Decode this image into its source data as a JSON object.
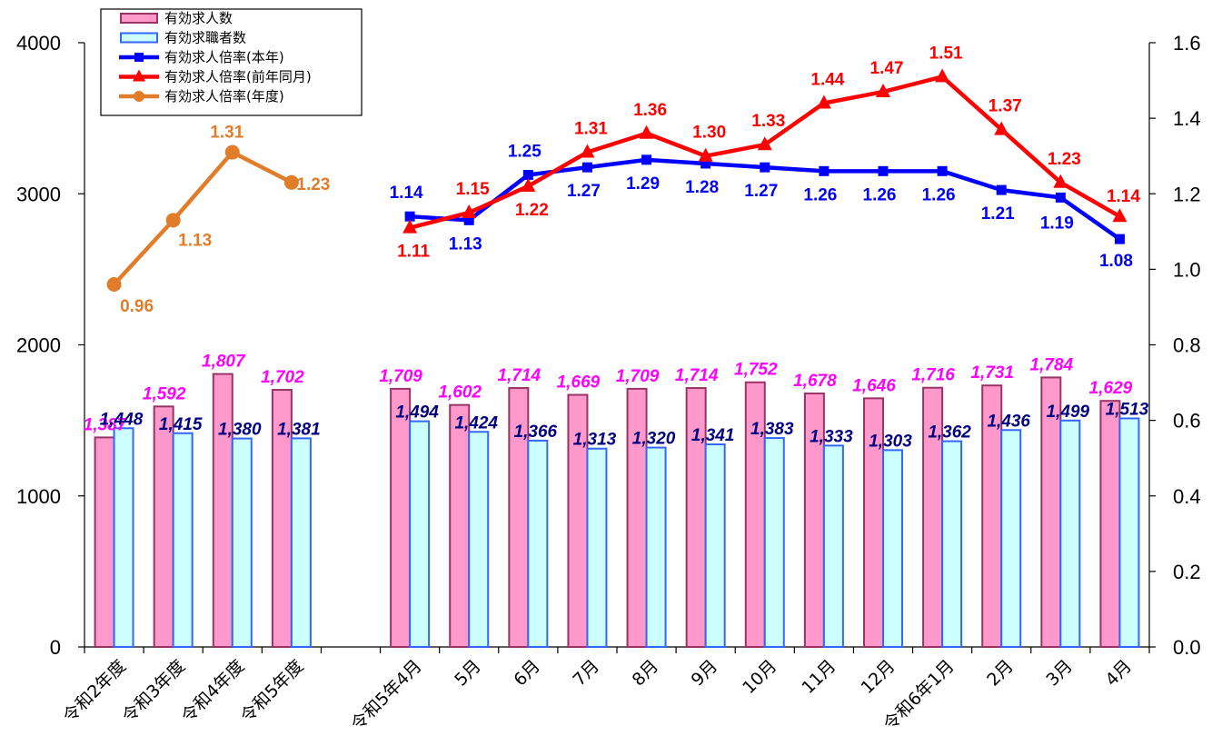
{
  "chart_data": {
    "type": "bar",
    "categories": [
      "令和2年度",
      "令和3年度",
      "令和4年度",
      "令和5年度",
      "",
      "令和5年4月",
      "5月",
      "6月",
      "7月",
      "8月",
      "9月",
      "10月",
      "11月",
      "12月",
      "令和6年1月",
      "2月",
      "3月",
      "4月"
    ],
    "y_left": {
      "min": 0,
      "max": 4000,
      "ticks": [
        "0",
        "1000",
        "2000",
        "3000",
        "4000"
      ]
    },
    "y_right": {
      "min": 0,
      "max": 1.6,
      "ticks": [
        "0.0",
        "0.2",
        "0.4",
        "0.6",
        "0.8",
        "1.0",
        "1.2",
        "1.4",
        "1.6"
      ]
    },
    "grid": false,
    "legend_position": "top-left",
    "series": [
      {
        "name": "有効求人数",
        "kind": "bar",
        "axis": "left",
        "fill": "#ff99cc",
        "stroke": "#993366",
        "label_color": "#ff00ff",
        "values": [
          1387,
          1592,
          1807,
          1702,
          null,
          1709,
          1602,
          1714,
          1669,
          1709,
          1714,
          1752,
          1678,
          1646,
          1716,
          1731,
          1784,
          1629
        ],
        "labels": [
          "1,387",
          "1,592",
          "1,807",
          "1,702",
          "",
          "1,709",
          "1,602",
          "1,714",
          "1,669",
          "1,709",
          "1,714",
          "1,752",
          "1,678",
          "1,646",
          "1,716",
          "1,731",
          "1,784",
          "1,629"
        ]
      },
      {
        "name": "有効求職者数",
        "kind": "bar",
        "axis": "left",
        "fill": "#ccffff",
        "stroke": "#3366ff",
        "label_color": "#000080",
        "values": [
          1448,
          1415,
          1380,
          1381,
          null,
          1494,
          1424,
          1366,
          1313,
          1320,
          1341,
          1383,
          1333,
          1303,
          1362,
          1436,
          1499,
          1513
        ],
        "labels": [
          "1,448",
          "1,415",
          "1,380",
          "1,381",
          "",
          "1,494",
          "1,424",
          "1,366",
          "1,313",
          "1,320",
          "1,341",
          "1,383",
          "1,333",
          "1,303",
          "1,362",
          "1,436",
          "1,499",
          "1,513"
        ]
      },
      {
        "name": "有効求人倍率(本年)",
        "kind": "line",
        "axis": "right",
        "color": "#0000ff",
        "marker": "square",
        "values": [
          null,
          null,
          null,
          null,
          null,
          1.14,
          1.13,
          1.25,
          1.27,
          1.29,
          1.28,
          1.27,
          1.26,
          1.26,
          1.26,
          1.21,
          1.19,
          1.08
        ],
        "labels": [
          "",
          "",
          "",
          "",
          "",
          "1.14",
          "1.13",
          "1.25",
          "1.27",
          "1.29",
          "1.28",
          "1.27",
          "1.26",
          "1.26",
          "1.26",
          "1.21",
          "1.19",
          "1.08"
        ]
      },
      {
        "name": "有効求人倍率(前年同月)",
        "kind": "line",
        "axis": "right",
        "color": "#ff0000",
        "marker": "triangle",
        "values": [
          null,
          null,
          null,
          null,
          null,
          1.11,
          1.15,
          1.22,
          1.31,
          1.36,
          1.3,
          1.33,
          1.44,
          1.47,
          1.51,
          1.37,
          1.23,
          1.14
        ],
        "labels": [
          "",
          "",
          "",
          "",
          "",
          "1.11",
          "1.15",
          "1.22",
          "1.31",
          "1.36",
          "1.30",
          "1.33",
          "1.44",
          "1.47",
          "1.51",
          "1.37",
          "1.23",
          "1.14"
        ]
      },
      {
        "name": "有効求人倍率(年度)",
        "kind": "line",
        "axis": "right",
        "color": "#e07c2a",
        "marker": "circle",
        "values": [
          0.96,
          1.13,
          1.31,
          1.23,
          null,
          null,
          null,
          null,
          null,
          null,
          null,
          null,
          null,
          null,
          null,
          null,
          null,
          null
        ],
        "labels": [
          "0.96",
          "1.13",
          "1.31",
          "1.23",
          "",
          "",
          "",
          "",
          "",
          "",
          "",
          "",
          "",
          "",
          "",
          "",
          "",
          ""
        ]
      }
    ]
  }
}
